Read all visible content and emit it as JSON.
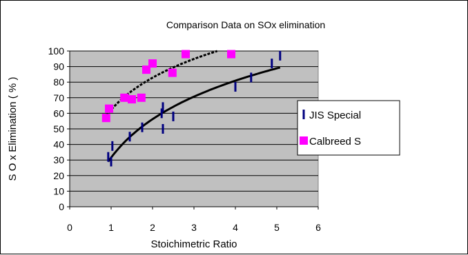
{
  "chart_data": {
    "type": "scatter",
    "title": "Comparison Data on SOx elimination",
    "xlabel": "Stoichimetric Ratio",
    "ylabel": "S O x  Elimination ( % )",
    "xlim": [
      0,
      6
    ],
    "ylim": [
      0,
      100
    ],
    "xticks": [
      0,
      1,
      2,
      3,
      4,
      5,
      6
    ],
    "yticks": [
      0,
      10,
      20,
      30,
      40,
      50,
      60,
      70,
      80,
      90,
      100
    ],
    "grid": "horizontal",
    "plot_background": "#c0c0c0",
    "legend_position": "right",
    "series": [
      {
        "name": "JIS Special",
        "marker": "vertical-dash",
        "color": "#000080",
        "points": [
          [
            0.93,
            32
          ],
          [
            1.0,
            29
          ],
          [
            1.03,
            39
          ],
          [
            1.45,
            45
          ],
          [
            1.75,
            51
          ],
          [
            2.22,
            60
          ],
          [
            2.25,
            64
          ],
          [
            2.25,
            50
          ],
          [
            2.5,
            58
          ],
          [
            4.0,
            77
          ],
          [
            4.38,
            83
          ],
          [
            4.88,
            92
          ],
          [
            5.08,
            97
          ]
        ],
        "trendline": "logarithmic",
        "trendline_color": "#000000",
        "trendline_range": [
          0.93,
          5.08
        ]
      },
      {
        "name": "Calbreed S",
        "marker": "square",
        "color": "#ff00ff",
        "points": [
          [
            0.88,
            57
          ],
          [
            0.95,
            63
          ],
          [
            1.32,
            70
          ],
          [
            1.5,
            69
          ],
          [
            1.73,
            70
          ],
          [
            1.85,
            88
          ],
          [
            2.0,
            92
          ],
          [
            2.48,
            86
          ],
          [
            2.8,
            98
          ],
          [
            3.9,
            98
          ]
        ],
        "trendline": "logarithmic",
        "trendline_style": "dashed",
        "trendline_color": "#000000",
        "trendline_range": [
          0.88,
          3.9
        ]
      }
    ]
  }
}
